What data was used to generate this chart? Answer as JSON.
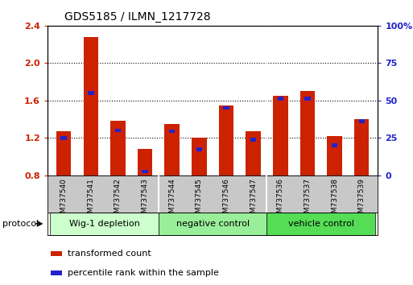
{
  "title": "GDS5185 / ILMN_1217728",
  "samples": [
    "GSM737540",
    "GSM737541",
    "GSM737542",
    "GSM737543",
    "GSM737544",
    "GSM737545",
    "GSM737546",
    "GSM737547",
    "GSM737536",
    "GSM737537",
    "GSM737538",
    "GSM737539"
  ],
  "red_values": [
    1.27,
    2.28,
    1.38,
    1.08,
    1.35,
    1.2,
    1.55,
    1.27,
    1.65,
    1.7,
    1.22,
    1.4
  ],
  "blue_values": [
    1.2,
    1.68,
    1.28,
    0.84,
    1.27,
    1.08,
    1.52,
    1.18,
    1.62,
    1.62,
    1.12,
    1.38
  ],
  "ylim_left": [
    0.8,
    2.4
  ],
  "ylim_right": [
    0,
    100
  ],
  "yticks_left": [
    0.8,
    1.2,
    1.6,
    2.0,
    2.4
  ],
  "yticks_right": [
    0,
    25,
    50,
    75,
    100
  ],
  "ytick_labels_left": [
    "0.8",
    "1.2",
    "1.6",
    "2.0",
    "2.4"
  ],
  "ytick_labels_right": [
    "0",
    "25",
    "50",
    "75",
    "100%"
  ],
  "red_color": "#cc2200",
  "blue_color": "#2222cc",
  "bar_width": 0.55,
  "blue_bar_width": 0.22,
  "blue_bar_height": 0.04,
  "groups": [
    {
      "label": "Wig-1 depletion",
      "start": 0,
      "end": 3,
      "color": "#ccffcc"
    },
    {
      "label": "negative control",
      "start": 4,
      "end": 7,
      "color": "#99ee99"
    },
    {
      "label": "vehicle control",
      "start": 8,
      "end": 11,
      "color": "#55dd55"
    }
  ],
  "protocol_label": "protocol",
  "legend_items": [
    {
      "color": "#cc2200",
      "label": "transformed count"
    },
    {
      "color": "#2222cc",
      "label": "percentile rank within the sample"
    }
  ],
  "tick_area_color": "#c8c8c8",
  "grid_yticks": [
    1.2,
    1.6,
    2.0
  ]
}
